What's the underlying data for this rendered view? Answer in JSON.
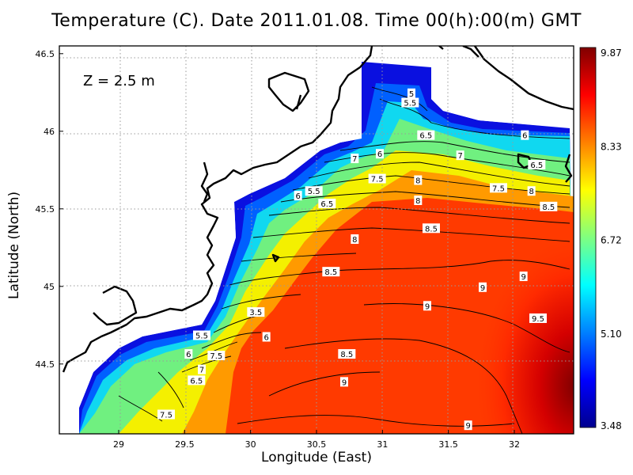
{
  "title": "Temperature (C). Date 2011.01.08. Time 00(h):00(m) GMT",
  "depth_label": "Z = 2.5 m",
  "x_axis_label": "Longitude (East)",
  "y_axis_label": "Latitude (North)",
  "chart_data": {
    "type": "heatmap",
    "variable": "Temperature (C)",
    "x_ticks": [
      "29",
      "29.5",
      "30",
      "30.5",
      "31",
      "31.5",
      "32"
    ],
    "y_ticks": [
      "44.5",
      "45",
      "45.5",
      "46",
      "46.5"
    ],
    "xlim": [
      28.55,
      32.45
    ],
    "ylim": [
      44.05,
      46.55
    ],
    "grid": true,
    "colorbar": {
      "ticks": [
        "9.87",
        "8.33",
        "6.72",
        "5.10",
        "3.48"
      ],
      "min": 3.48,
      "max": 9.87,
      "colors": [
        "#00008f",
        "#0000ff",
        "#0080ff",
        "#00ffff",
        "#80ff80",
        "#ffff00",
        "#ff8000",
        "#ff0000",
        "#800000"
      ]
    },
    "contour_labels": [
      {
        "text": "5",
        "lon": 31.22,
        "lat": 46.24
      },
      {
        "text": "5.5",
        "lon": 31.21,
        "lat": 46.18
      },
      {
        "text": "6.5",
        "lon": 31.33,
        "lat": 45.97
      },
      {
        "text": "6",
        "lon": 32.08,
        "lat": 45.97
      },
      {
        "text": "6",
        "lon": 30.98,
        "lat": 45.85
      },
      {
        "text": "7",
        "lon": 31.59,
        "lat": 45.84
      },
      {
        "text": "6.5",
        "lon": 32.17,
        "lat": 45.78
      },
      {
        "text": "7",
        "lon": 30.79,
        "lat": 45.82
      },
      {
        "text": "7.5",
        "lon": 30.96,
        "lat": 45.69
      },
      {
        "text": "8",
        "lon": 31.27,
        "lat": 45.68
      },
      {
        "text": "7.5",
        "lon": 31.88,
        "lat": 45.63
      },
      {
        "text": "8",
        "lon": 32.13,
        "lat": 45.61
      },
      {
        "text": "5.5",
        "lon": 30.48,
        "lat": 45.61
      },
      {
        "text": "6",
        "lon": 30.36,
        "lat": 45.58
      },
      {
        "text": "6.5",
        "lon": 30.58,
        "lat": 45.53
      },
      {
        "text": "8",
        "lon": 31.27,
        "lat": 45.55
      },
      {
        "text": "8.5",
        "lon": 32.26,
        "lat": 45.51
      },
      {
        "text": "8.5",
        "lon": 31.37,
        "lat": 45.37
      },
      {
        "text": "8",
        "lon": 30.79,
        "lat": 45.3
      },
      {
        "text": "8.5",
        "lon": 30.61,
        "lat": 45.09
      },
      {
        "text": "9",
        "lon": 32.07,
        "lat": 45.06
      },
      {
        "text": "9",
        "lon": 31.76,
        "lat": 44.99
      },
      {
        "text": "9",
        "lon": 31.34,
        "lat": 44.87
      },
      {
        "text": "3.5",
        "lon": 30.04,
        "lat": 44.83
      },
      {
        "text": "9.5",
        "lon": 32.18,
        "lat": 44.79
      },
      {
        "text": "6",
        "lon": 30.12,
        "lat": 44.67
      },
      {
        "text": "5.5",
        "lon": 29.63,
        "lat": 44.68
      },
      {
        "text": "8.5",
        "lon": 30.73,
        "lat": 44.56
      },
      {
        "text": "6",
        "lon": 29.53,
        "lat": 44.56
      },
      {
        "text": "7.5",
        "lon": 29.74,
        "lat": 44.55
      },
      {
        "text": "7",
        "lon": 29.63,
        "lat": 44.46
      },
      {
        "text": "9",
        "lon": 30.71,
        "lat": 44.38
      },
      {
        "text": "6.5",
        "lon": 29.59,
        "lat": 44.39
      },
      {
        "text": "7.5",
        "lon": 29.36,
        "lat": 44.17
      },
      {
        "text": "9",
        "lon": 31.65,
        "lat": 44.1
      }
    ]
  }
}
